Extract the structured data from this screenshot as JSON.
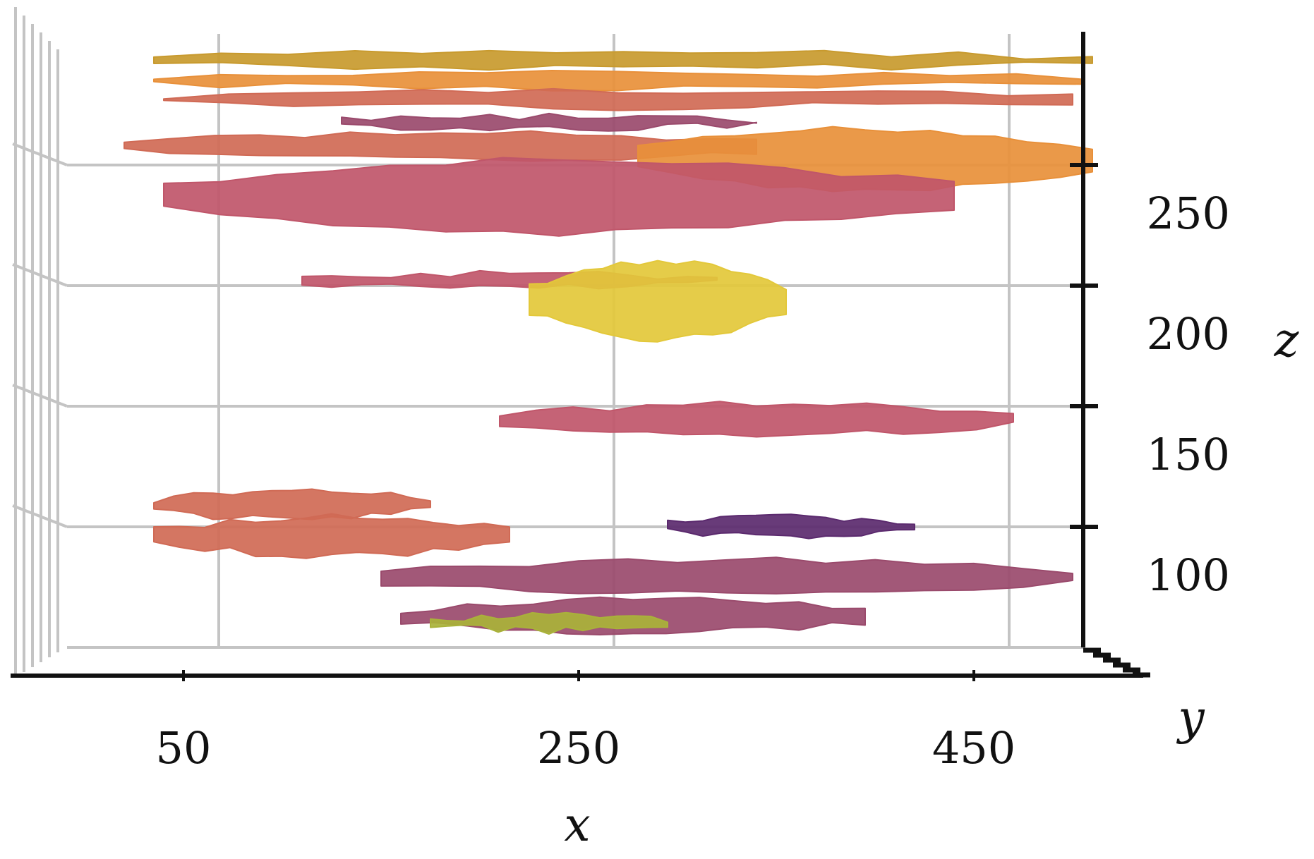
{
  "chart_data": {
    "type": "3d-surface",
    "xlabel": "x",
    "ylabel": "y",
    "zlabel": "z",
    "xticks": [
      50,
      250,
      450
    ],
    "zticks": [
      100,
      150,
      200,
      250
    ],
    "xlim": [
      -20,
      525
    ],
    "zlim": [
      50,
      305
    ],
    "grid": true,
    "view": "front (x–z plane), y into page",
    "colormap": "plasma-like (purple → orange → yellow)",
    "colors": {
      "purple": "#5b2a6e",
      "mauve": "#9a4a6c",
      "rose": "#c0566a",
      "coral": "#d06a55",
      "orange": "#e8903a",
      "gold": "#c89a2e",
      "yellow": "#e3c83a",
      "lime": "#a9b23a",
      "grid": "#c4c4c4",
      "axis": "#111111"
    },
    "surfaces": [
      {
        "x": [
          35,
          510
        ],
        "z": [
          290,
          297
        ],
        "color": "gold"
      },
      {
        "x": [
          35,
          505
        ],
        "z": [
          282,
          288
        ],
        "color": "orange"
      },
      {
        "x": [
          40,
          500
        ],
        "z": [
          274,
          281
        ],
        "color": "coral"
      },
      {
        "x": [
          130,
          340
        ],
        "z": [
          265,
          270
        ],
        "color": "mauve"
      },
      {
        "x": [
          20,
          340
        ],
        "z": [
          252,
          263
        ],
        "color": "coral"
      },
      {
        "x": [
          280,
          510
        ],
        "z": [
          240,
          265
        ],
        "color": "orange"
      },
      {
        "x": [
          40,
          440
        ],
        "z": [
          222,
          252
        ],
        "color": "rose"
      },
      {
        "x": [
          110,
          320
        ],
        "z": [
          199,
          205
        ],
        "color": "rose"
      },
      {
        "x": [
          225,
          355
        ],
        "z": [
          178,
          210
        ],
        "color": "yellow"
      },
      {
        "x": [
          210,
          470
        ],
        "z": [
          138,
          151
        ],
        "color": "rose"
      },
      {
        "x": [
          35,
          175
        ],
        "z": [
          103,
          115
        ],
        "color": "coral"
      },
      {
        "x": [
          35,
          215
        ],
        "z": [
          88,
          104
        ],
        "color": "coral"
      },
      {
        "x": [
          295,
          420
        ],
        "z": [
          96,
          104
        ],
        "color": "purple"
      },
      {
        "x": [
          150,
          500
        ],
        "z": [
          72,
          86
        ],
        "color": "mauve"
      },
      {
        "x": [
          160,
          395
        ],
        "z": [
          56,
          70
        ],
        "color": "mauve"
      },
      {
        "x": [
          175,
          295
        ],
        "z": [
          57,
          63
        ],
        "color": "lime"
      }
    ]
  }
}
